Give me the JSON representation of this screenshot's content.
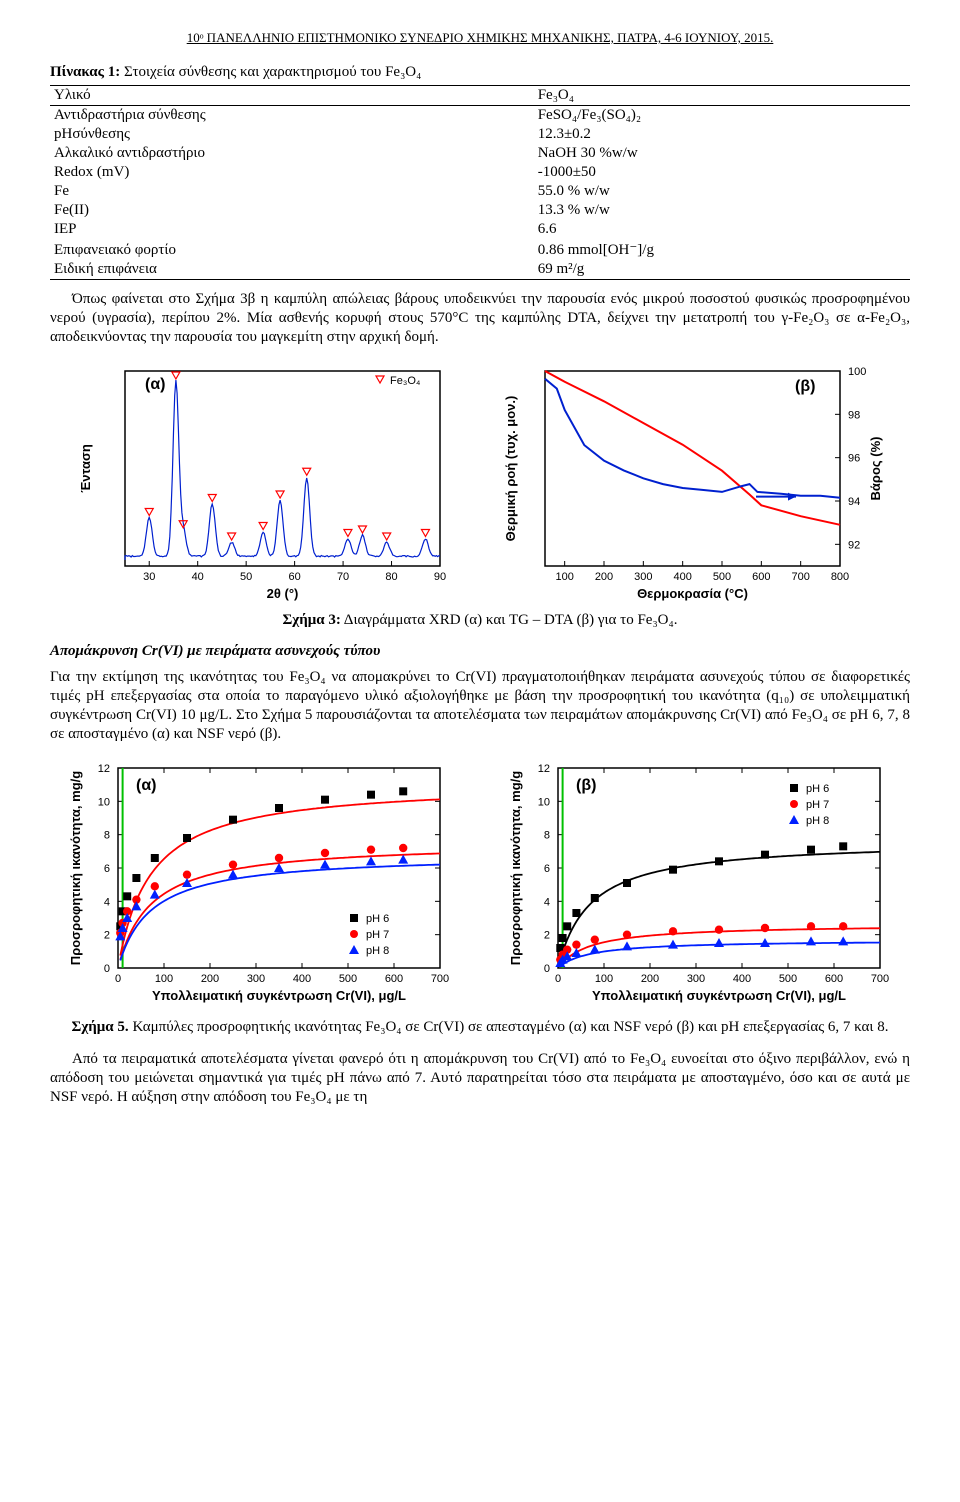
{
  "header": "10ᵒ ΠΑΝΕΛΛΗΝΙΟ ΕΠΙΣΤΗΜΟΝΙΚΟ ΣΥΝΕΔΡΙΟ ΧΗΜΙΚΗΣ ΜΗΧΑΝΙΚΗΣ, ΠΑΤΡΑ, 4-6 ΙΟΥΝΙΟΥ, 2015.",
  "table_caption_bold": "Πίνακας 1:",
  "table_caption_rest": " Στοιχεία σύνθεσης και χαρακτηρισμού του Fe₃O₄",
  "table": {
    "left_head": "Υλικό",
    "right_head": "Fe₃O₄",
    "rows": [
      [
        "Αντιδραστήρια σύνθεσης",
        "FeSO₄/Fe₃(SO₄)₂"
      ],
      [
        "pHσύνθεσης",
        "12.3±0.2"
      ],
      [
        "Αλκαλικό αντιδραστήριο",
        "NaOH 30 %w/w"
      ],
      [
        "Redox (mV)",
        "-1000±50"
      ],
      [
        "Fe",
        "55.0 % w/w"
      ],
      [
        "Fe(II)",
        "13.3 % w/w"
      ],
      [
        "IEP",
        "6.6"
      ],
      [
        "Επιφανειακό φορτίο",
        "0.86 mmol[OH⁻]/g"
      ],
      [
        "Ειδική επιφάνεια",
        "69 m²/g"
      ]
    ]
  },
  "para1": "Όπως φαίνεται στο Σχήμα 3β η καμπύλη απώλειας βάρους υποδεικνύει την παρουσία ενός μικρού ποσοστού φυσικώς προσροφημένου νερού (υγρασία), περίπου 2%. Μία ασθενής κορυφή στους 570°C της καμπύλης DTA, δείχνει την μετατροπή του γ-Fe₂O₃ σε α-Fe₂O₃, αποδεικνύοντας την παρουσία του μαγκεμίτη στην αρχική δομή.",
  "fig3_caption_b": "Σχήμα 3:",
  "fig3_caption_rest": " Διαγράμματα XRD (α) και TG – DTA (β) για το Fe₃O₄.",
  "section2_title": "Απομάκρυνση Cr(VI) με πειράματα ασυνεχούς τύπου",
  "para2": "Για την εκτίμηση της ικανότητας του Fe₃O₄ να απομακρύνει το Cr(VI) πραγματοποιήθηκαν πειράματα ασυνεχούς τύπου σε διαφορετικές τιμές pH επεξεργασίας στα οποία το παραγόμενο υλικό αξιολογήθηκε με βάση την προσροφητική του ικανότητα (q₁₀) σε υπολειμματική συγκέντρωση Cr(VI) 10 μg/L. Στο Σχήμα 5 παρουσιάζονται τα αποτελέσματα των πειραμάτων απομάκρυνσης Cr(VI) από Fe₃O₄ σε pH 6, 7, 8 σε αποσταγμένο (α) και NSF νερό (β).",
  "fig5_caption_b": "Σχήμα 5.",
  "fig5_caption_rest": " Καμπύλες προσροφητικής ικανότητας Fe₃O₄ σε Cr(VI) σε απεσταγμένο (α) και NSF νερό (β) και pH επεξεργασίας 6, 7 και 8.",
  "para3": "Από τα πειραματικά αποτελέσματα γίνεται φανερό ότι η απομάκρυνση του Cr(VI) από το Fe₃O₄ ευνοείται στο όξινο περιβάλλον, ενώ η απόδοση του μειώνεται σημαντικά για τιμές pH πάνω από 7. Αυτό παρατηρείται τόσο στα πειράματα με αποσταγμένο, όσο και σε αυτά με NSF νερό. Η αύξηση στην απόδοση του Fe₃O₄ με τη",
  "xrd": {
    "type": "line",
    "panel_label": "(α)",
    "legend": "Fe₃O₄",
    "xlabel": "2θ (°)",
    "ylabel": "Ένταση",
    "xlim": [
      25,
      90
    ],
    "xticks": [
      30,
      40,
      50,
      60,
      70,
      80,
      90
    ],
    "peaks_x": [
      30,
      35.5,
      37,
      43,
      47,
      53.5,
      57,
      62.5,
      71,
      74,
      79,
      87
    ],
    "peaks_y": [
      22,
      100,
      15,
      30,
      8,
      14,
      32,
      45,
      10,
      12,
      8,
      10
    ],
    "line_color": "#0020cf",
    "marker_edge": "#ff0000",
    "bg": "#ffffff"
  },
  "tgdta": {
    "type": "dual-line",
    "panel_label": "(β)",
    "xlabel": "Θερμοκρασία (°C)",
    "ylabel_left": "Θερμική ροή (τυχ. μον.)",
    "ylabel_right": "Βάρος (%)",
    "xlim": [
      50,
      800
    ],
    "xticks": [
      100,
      200,
      300,
      400,
      500,
      600,
      700,
      800
    ],
    "ylim_right": [
      91,
      100
    ],
    "yticks_right": [
      92,
      94,
      96,
      98,
      100
    ],
    "tg": {
      "color": "#ff0000",
      "pts": [
        [
          50,
          100
        ],
        [
          100,
          99.5
        ],
        [
          200,
          98.6
        ],
        [
          300,
          97.6
        ],
        [
          400,
          96.6
        ],
        [
          500,
          95.4
        ],
        [
          570,
          94.3
        ],
        [
          600,
          93.8
        ],
        [
          700,
          93.3
        ],
        [
          800,
          92.9
        ]
      ]
    },
    "dta": {
      "color": "#0020cf",
      "pts": [
        [
          50,
          9.6
        ],
        [
          80,
          9.1
        ],
        [
          100,
          8.0
        ],
        [
          150,
          6.2
        ],
        [
          200,
          5.4
        ],
        [
          250,
          4.9
        ],
        [
          300,
          4.5
        ],
        [
          350,
          4.2
        ],
        [
          400,
          4.0
        ],
        [
          450,
          3.9
        ],
        [
          500,
          3.8
        ],
        [
          550,
          4.1
        ],
        [
          570,
          4.2
        ],
        [
          590,
          3.8
        ],
        [
          650,
          3.7
        ],
        [
          700,
          3.6
        ],
        [
          750,
          3.6
        ],
        [
          800,
          3.5
        ]
      ]
    },
    "arrow_color": "#0020cf"
  },
  "sorb_a": {
    "panel_label": "(α)",
    "xlabel": "Υπολλειματική συγκέντρωση Cr(VI), μg/L",
    "ylabel": "Προσροφητική ικανότητα, mg/g",
    "xlim": [
      0,
      700
    ],
    "xticks": [
      0,
      100,
      200,
      300,
      400,
      500,
      600,
      700
    ],
    "ylim": [
      0,
      12
    ],
    "yticks": [
      0,
      2,
      4,
      6,
      8,
      10,
      12
    ],
    "series": [
      {
        "name": "pH 6",
        "marker": "square",
        "color": "#000000",
        "line": "#ff0000",
        "pts": [
          [
            5,
            2.5
          ],
          [
            10,
            3.4
          ],
          [
            20,
            4.3
          ],
          [
            40,
            5.4
          ],
          [
            80,
            6.6
          ],
          [
            150,
            7.8
          ],
          [
            250,
            8.9
          ],
          [
            350,
            9.6
          ],
          [
            450,
            10.1
          ],
          [
            550,
            10.4
          ],
          [
            620,
            10.6
          ]
        ]
      },
      {
        "name": "pH 7",
        "marker": "circle",
        "color": "#ff0000",
        "line": "#ff0000",
        "pts": [
          [
            5,
            2.1
          ],
          [
            10,
            2.7
          ],
          [
            20,
            3.4
          ],
          [
            40,
            4.1
          ],
          [
            80,
            4.9
          ],
          [
            150,
            5.6
          ],
          [
            250,
            6.2
          ],
          [
            350,
            6.6
          ],
          [
            450,
            6.9
          ],
          [
            550,
            7.1
          ],
          [
            620,
            7.2
          ]
        ]
      },
      {
        "name": "pH 8",
        "marker": "triangle",
        "color": "#0020ff",
        "line": "#0020ff",
        "pts": [
          [
            5,
            1.9
          ],
          [
            10,
            2.4
          ],
          [
            20,
            3.0
          ],
          [
            40,
            3.7
          ],
          [
            80,
            4.4
          ],
          [
            150,
            5.1
          ],
          [
            250,
            5.6
          ],
          [
            350,
            6.0
          ],
          [
            450,
            6.2
          ],
          [
            550,
            6.4
          ],
          [
            620,
            6.5
          ]
        ]
      }
    ]
  },
  "sorb_b": {
    "panel_label": "(β)",
    "xlabel": "Υπολλειματική συγκέντρωση Cr(VI), μg/L",
    "ylabel": "Προσροφητική ικανότητα, mg/g",
    "xlim": [
      0,
      700
    ],
    "xticks": [
      0,
      100,
      200,
      300,
      400,
      500,
      600,
      700
    ],
    "ylim": [
      0,
      12
    ],
    "yticks": [
      0,
      2,
      4,
      6,
      8,
      10,
      12
    ],
    "series": [
      {
        "name": "pH 6",
        "marker": "square",
        "color": "#000000",
        "line": "#000000",
        "pts": [
          [
            5,
            1.2
          ],
          [
            10,
            1.8
          ],
          [
            20,
            2.5
          ],
          [
            40,
            3.3
          ],
          [
            80,
            4.2
          ],
          [
            150,
            5.1
          ],
          [
            250,
            5.9
          ],
          [
            350,
            6.4
          ],
          [
            450,
            6.8
          ],
          [
            550,
            7.1
          ],
          [
            620,
            7.3
          ]
        ]
      },
      {
        "name": "pH 7",
        "marker": "circle",
        "color": "#ff0000",
        "line": "#ff0000",
        "pts": [
          [
            5,
            0.5
          ],
          [
            10,
            0.8
          ],
          [
            20,
            1.1
          ],
          [
            40,
            1.4
          ],
          [
            80,
            1.7
          ],
          [
            150,
            2.0
          ],
          [
            250,
            2.2
          ],
          [
            350,
            2.3
          ],
          [
            450,
            2.4
          ],
          [
            550,
            2.5
          ],
          [
            620,
            2.5
          ]
        ]
      },
      {
        "name": "pH 8",
        "marker": "triangle",
        "color": "#0020ff",
        "line": "#0020ff",
        "pts": [
          [
            5,
            0.3
          ],
          [
            10,
            0.5
          ],
          [
            20,
            0.7
          ],
          [
            40,
            0.9
          ],
          [
            80,
            1.1
          ],
          [
            150,
            1.3
          ],
          [
            250,
            1.4
          ],
          [
            350,
            1.5
          ],
          [
            450,
            1.5
          ],
          [
            550,
            1.6
          ],
          [
            620,
            1.6
          ]
        ]
      }
    ]
  },
  "legend_labels": [
    "pH 6",
    "pH 7",
    "pH 8"
  ],
  "ref_line_color": "#00c000"
}
